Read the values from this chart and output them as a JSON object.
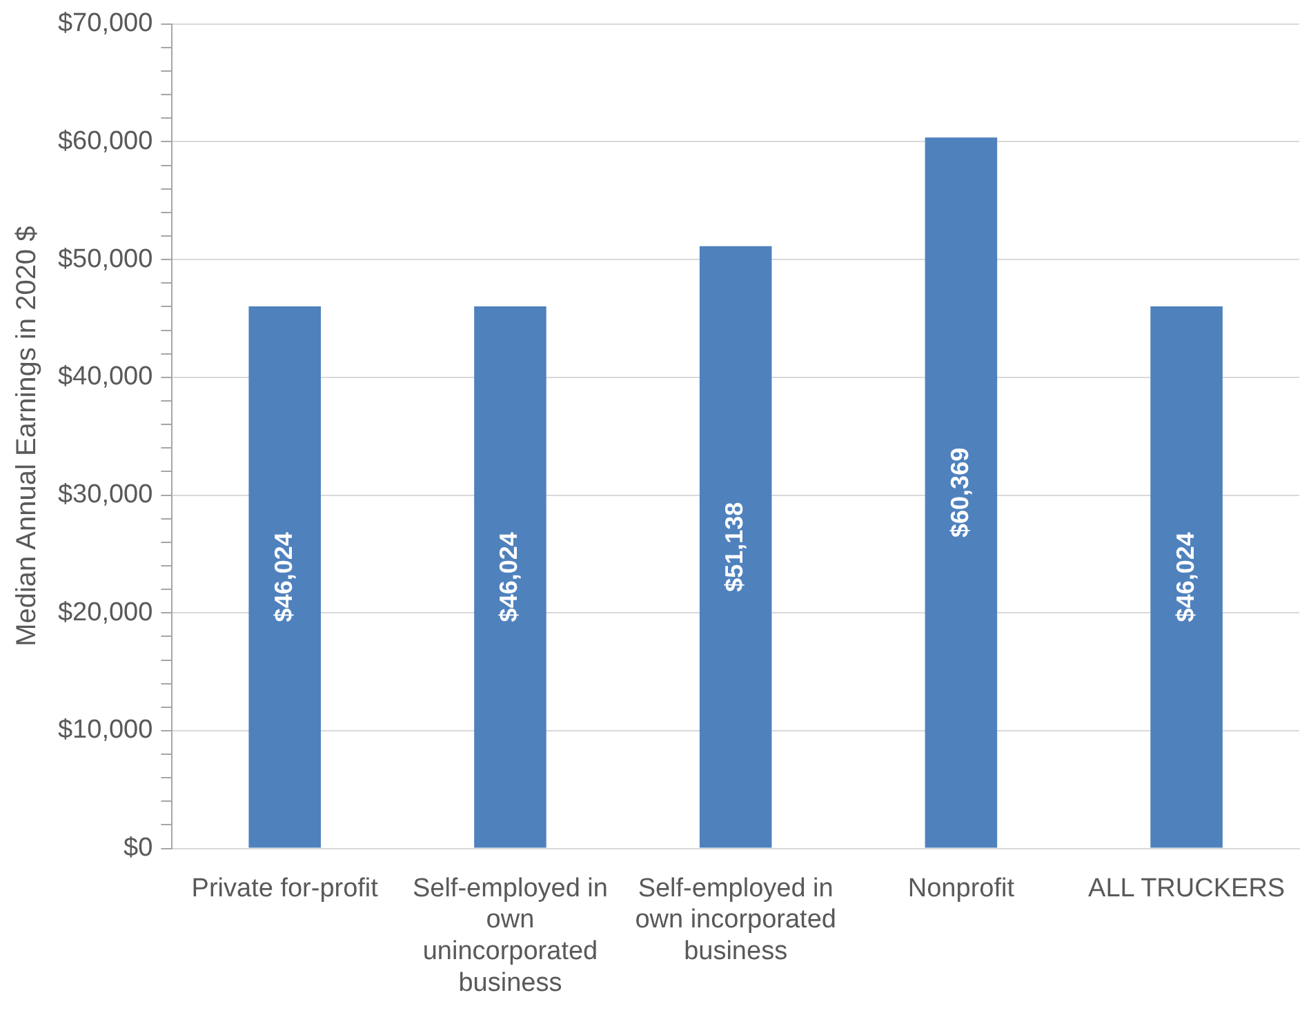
{
  "chart_data": {
    "type": "bar",
    "ylabel": "Median Annual Earnings in 2020 $",
    "categories": [
      "Private for-profit",
      "Self-employed in own unincorporated business",
      "Self-employed in own incorporated business",
      "Nonprofit",
      "ALL TRUCKERS"
    ],
    "values": [
      46024,
      46024,
      51138,
      60369,
      46024
    ],
    "value_labels": [
      "$46,024",
      "$46,024",
      "$51,138",
      "$60,369",
      "$46,024"
    ],
    "color": "#4f81bd",
    "ylim": [
      0,
      70000
    ],
    "yticks": [
      {
        "value": 0,
        "label": "$0"
      },
      {
        "value": 2000,
        "label": null
      },
      {
        "value": 4000,
        "label": null
      },
      {
        "value": 6000,
        "label": null
      },
      {
        "value": 8000,
        "label": null
      },
      {
        "value": 10000,
        "label": "$10,000"
      },
      {
        "value": 12000,
        "label": null
      },
      {
        "value": 14000,
        "label": null
      },
      {
        "value": 16000,
        "label": null
      },
      {
        "value": 18000,
        "label": null
      },
      {
        "value": 20000,
        "label": "$20,000"
      },
      {
        "value": 22000,
        "label": null
      },
      {
        "value": 24000,
        "label": null
      },
      {
        "value": 26000,
        "label": null
      },
      {
        "value": 28000,
        "label": null
      },
      {
        "value": 30000,
        "label": "$30,000"
      },
      {
        "value": 32000,
        "label": null
      },
      {
        "value": 34000,
        "label": null
      },
      {
        "value": 36000,
        "label": null
      },
      {
        "value": 38000,
        "label": null
      },
      {
        "value": 40000,
        "label": "$40,000"
      },
      {
        "value": 42000,
        "label": null
      },
      {
        "value": 44000,
        "label": null
      },
      {
        "value": 46000,
        "label": null
      },
      {
        "value": 48000,
        "label": null
      },
      {
        "value": 50000,
        "label": "$50,000"
      },
      {
        "value": 52000,
        "label": null
      },
      {
        "value": 54000,
        "label": null
      },
      {
        "value": 56000,
        "label": null
      },
      {
        "value": 58000,
        "label": null
      },
      {
        "value": 60000,
        "label": "$60,000"
      },
      {
        "value": 62000,
        "label": null
      },
      {
        "value": 64000,
        "label": null
      },
      {
        "value": 66000,
        "label": null
      },
      {
        "value": 68000,
        "label": null
      },
      {
        "value": 70000,
        "label": "$70,000"
      }
    ],
    "grid": "y"
  }
}
